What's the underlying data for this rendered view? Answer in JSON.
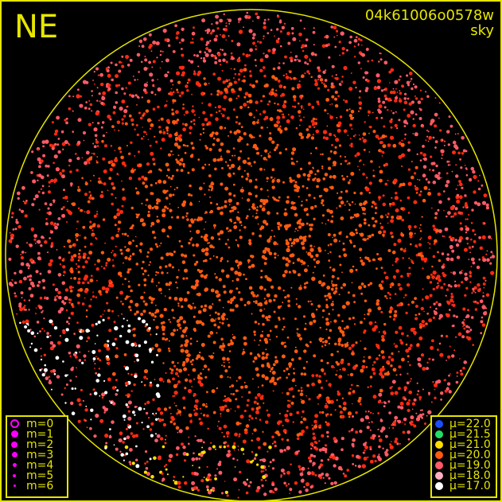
{
  "direction_label": "NE",
  "image_id": "04k61006o0578w",
  "image_type": "sky",
  "colors": {
    "frame": "#e6e600",
    "horizon_circle": "#e6e600",
    "magnitude_symbol": "#ff00ff"
  },
  "magnitude_legend": [
    {
      "label": "m=0",
      "style": "ring"
    },
    {
      "label": "m=1",
      "style": "filled"
    },
    {
      "label": "m=2",
      "style": "filled"
    },
    {
      "label": "m=3",
      "style": "filled"
    },
    {
      "label": "m=4",
      "style": "filled"
    },
    {
      "label": "m=5",
      "style": "filled"
    },
    {
      "label": "m=6",
      "style": "filled"
    }
  ],
  "brightness_legend": [
    {
      "label": "μ=22.0",
      "color": "#1a4dff"
    },
    {
      "label": "μ=21.5",
      "color": "#22dd66"
    },
    {
      "label": "μ=21.0",
      "color": "#ffdd00"
    },
    {
      "label": "μ=20.0",
      "color": "#ff5a10"
    },
    {
      "label": "μ=19.0",
      "color": "#ff5a66"
    },
    {
      "label": "μ=18.0",
      "color": "#ffb0c0"
    },
    {
      "label": "μ=17.0",
      "color": "#ffffff"
    }
  ]
}
